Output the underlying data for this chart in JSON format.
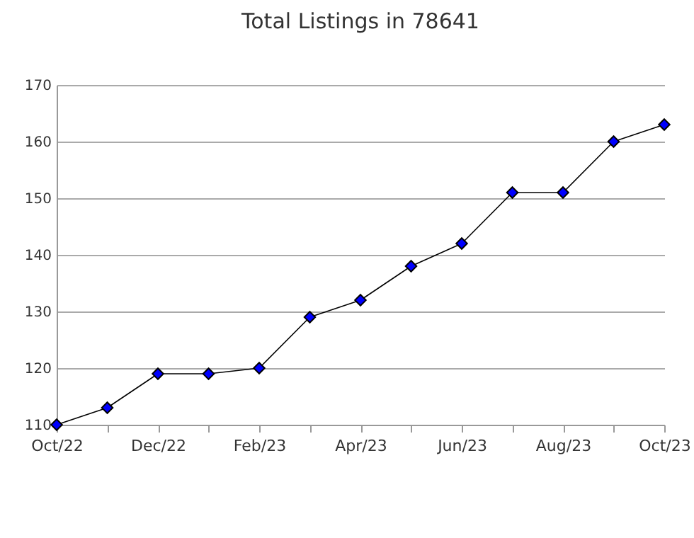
{
  "chart_data": {
    "type": "line",
    "title": "Total Listings in 78641",
    "categories": [
      "Oct/22",
      null,
      "Dec/22",
      null,
      "Feb/23",
      null,
      "Apr/23",
      null,
      "Jun/23",
      null,
      "Aug/23",
      null,
      "Oct/23"
    ],
    "series": [
      {
        "color": "#0000ff",
        "values": [
          110,
          113,
          119,
          119,
          120,
          129,
          132,
          138,
          142,
          151,
          151,
          160,
          163
        ]
      }
    ],
    "ylim": [
      110,
      170
    ],
    "yticks": [
      110,
      120,
      130,
      140,
      150,
      160,
      170
    ],
    "grid": "y",
    "marker": "diamond",
    "line_style": "solid"
  }
}
